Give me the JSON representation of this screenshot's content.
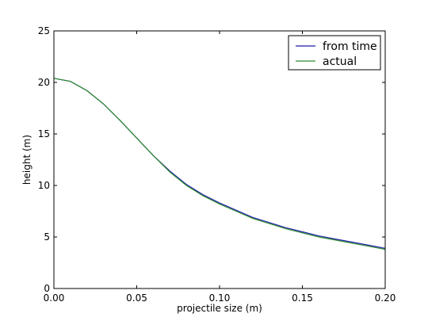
{
  "chart_data": {
    "type": "line",
    "title": "",
    "xlabel": "projectile size (m)",
    "ylabel": "height (m)",
    "xlim": [
      0.0,
      0.2
    ],
    "ylim": [
      0,
      25
    ],
    "xticks": [
      "0.00",
      "0.05",
      "0.10",
      "0.15",
      "0.20"
    ],
    "yticks": [
      "0",
      "5",
      "10",
      "15",
      "20",
      "25"
    ],
    "grid": false,
    "legend_position": "top-right",
    "x": [
      0.0,
      0.01,
      0.02,
      0.03,
      0.04,
      0.05,
      0.06,
      0.07,
      0.08,
      0.09,
      0.1,
      0.11,
      0.12,
      0.13,
      0.14,
      0.15,
      0.16,
      0.17,
      0.18,
      0.19,
      0.2
    ],
    "series": [
      {
        "name": "from time",
        "color": "#1f1fa8",
        "values": [
          20.4,
          20.1,
          19.2,
          17.9,
          16.3,
          14.6,
          12.9,
          11.4,
          10.1,
          9.1,
          8.3,
          7.6,
          6.9,
          6.4,
          5.9,
          5.5,
          5.1,
          4.8,
          4.5,
          4.2,
          3.9
        ]
      },
      {
        "name": "actual",
        "color": "#2e8b2e",
        "values": [
          20.4,
          20.1,
          19.2,
          17.9,
          16.3,
          14.6,
          12.9,
          11.3,
          10.0,
          9.0,
          8.2,
          7.5,
          6.8,
          6.3,
          5.8,
          5.4,
          5.0,
          4.7,
          4.4,
          4.1,
          3.8
        ]
      }
    ]
  }
}
